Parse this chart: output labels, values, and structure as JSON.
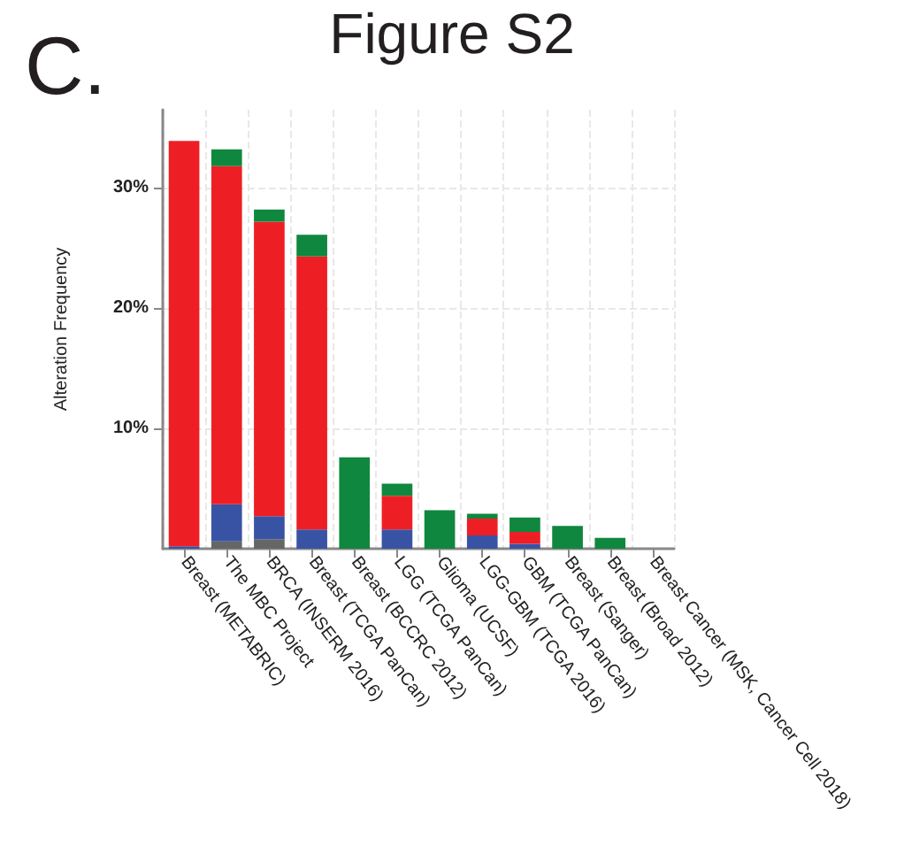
{
  "chart_data": {
    "type": "bar",
    "title": "Figure S2",
    "annotations": [
      "C."
    ],
    "ylabel": "Alteration Frequency",
    "stacked": true,
    "grid": true,
    "categories": [
      "Breast (METABRIC)",
      "The MBC Project",
      "BRCA (INSERM 2016)",
      "Breast (TCGA PanCan)",
      "Breast (BCCRC 2012)",
      "LGG (TCGA PanCan)",
      "Glioma (UCSF)",
      "LGG-GBM (TCGA 2016)",
      "GBM (TCGA PanCan)",
      "Breast (Sanger)",
      "Breast (Broad 2012)",
      "Breast Cancer (MSK, Cancer Cell 2018)"
    ],
    "series": [
      {
        "color": "#666666",
        "values": [
          0,
          0.6,
          0.8,
          null,
          0,
          0,
          0,
          0,
          0,
          0,
          0,
          0
        ]
      },
      {
        "color": "#3953a4",
        "values": [
          0.2,
          3.1,
          1.9,
          1.6,
          0,
          1.6,
          0,
          1.1,
          0.4,
          0,
          0,
          0
        ]
      },
      {
        "color": "#ee1f24",
        "values": [
          33.7,
          28.1,
          24.5,
          22.7,
          0,
          2.8,
          0,
          1.4,
          1.0,
          0,
          0,
          0
        ]
      },
      {
        "color": "#10873f",
        "values": [
          0,
          1.4,
          1.0,
          1.8,
          7.6,
          1.0,
          3.2,
          0.4,
          1.2,
          1.9,
          0.9,
          0
        ]
      }
    ],
    "ylim": [
      0,
      36.5
    ],
    "yticks": [
      {
        "value": 10,
        "label": "10%"
      },
      {
        "value": 20,
        "label": "20%"
      },
      {
        "value": 30,
        "label": "30%"
      }
    ]
  }
}
